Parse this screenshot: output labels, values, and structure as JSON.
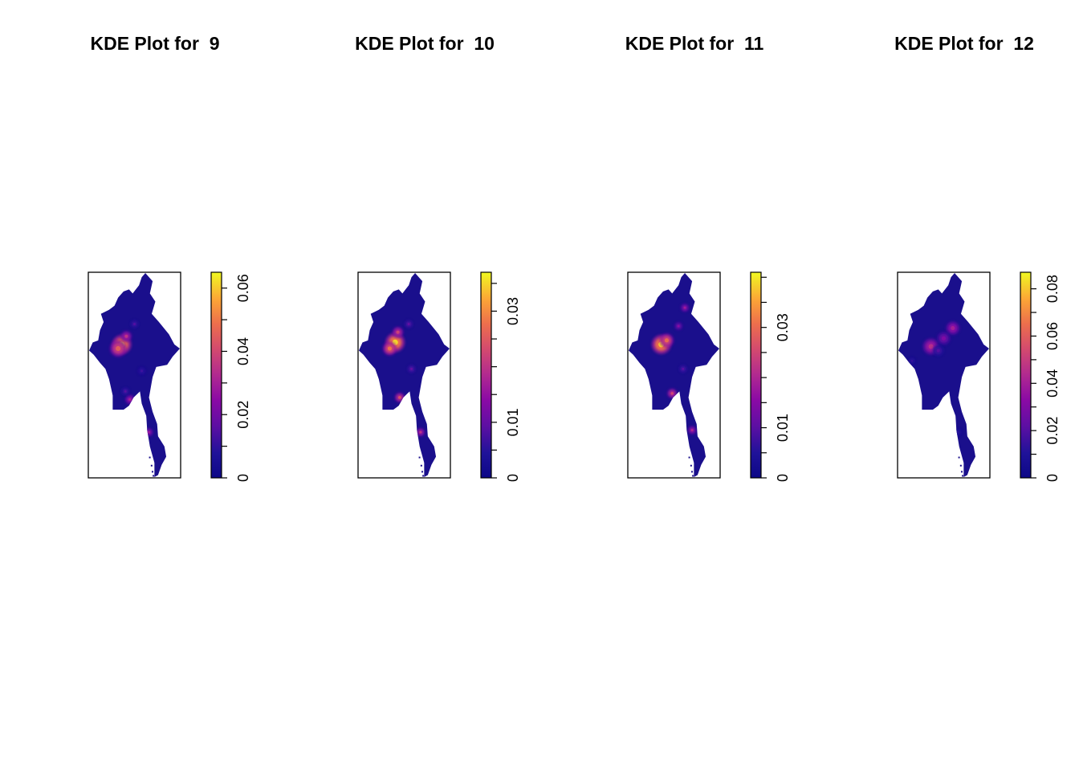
{
  "chart_data": [
    {
      "type": "heatmap",
      "title": "KDE Plot for  9",
      "xlabel": "",
      "ylabel": "",
      "colorbar": {
        "min": 0,
        "max": 0.065,
        "ticks": [
          0,
          0.01,
          0.02,
          0.03,
          0.04,
          0.05,
          0.06
        ],
        "tick_labels": [
          "0",
          "0.02",
          "0.04",
          "0.06"
        ],
        "palette": "plasma"
      },
      "hotspots": [
        {
          "x": 0.36,
          "y": 0.35,
          "value": 0.06,
          "r": 0.07
        },
        {
          "x": 0.32,
          "y": 0.37,
          "value": 0.045,
          "r": 0.06
        },
        {
          "x": 0.41,
          "y": 0.31,
          "value": 0.035,
          "r": 0.04
        },
        {
          "x": 0.45,
          "y": 0.62,
          "value": 0.03,
          "r": 0.035
        },
        {
          "x": 0.66,
          "y": 0.78,
          "value": 0.028,
          "r": 0.03
        },
        {
          "x": 0.5,
          "y": 0.25,
          "value": 0.015,
          "r": 0.03
        },
        {
          "x": 0.58,
          "y": 0.48,
          "value": 0.012,
          "r": 0.03
        },
        {
          "x": 0.4,
          "y": 0.58,
          "value": 0.015,
          "r": 0.03
        }
      ]
    },
    {
      "type": "heatmap",
      "title": "KDE Plot for  10",
      "xlabel": "",
      "ylabel": "",
      "colorbar": {
        "min": 0,
        "max": 0.037,
        "ticks": [
          0,
          0.005,
          0.01,
          0.015,
          0.02,
          0.025,
          0.03,
          0.035
        ],
        "tick_labels": [
          "0",
          "0.01",
          "0.03"
        ],
        "palette": "plasma"
      },
      "hotspots": [
        {
          "x": 0.4,
          "y": 0.34,
          "value": 0.035,
          "r": 0.07
        },
        {
          "x": 0.34,
          "y": 0.37,
          "value": 0.028,
          "r": 0.05
        },
        {
          "x": 0.43,
          "y": 0.29,
          "value": 0.022,
          "r": 0.04
        },
        {
          "x": 0.45,
          "y": 0.61,
          "value": 0.024,
          "r": 0.035
        },
        {
          "x": 0.68,
          "y": 0.78,
          "value": 0.02,
          "r": 0.03
        },
        {
          "x": 0.55,
          "y": 0.25,
          "value": 0.01,
          "r": 0.03
        },
        {
          "x": 0.58,
          "y": 0.47,
          "value": 0.01,
          "r": 0.03
        }
      ]
    },
    {
      "type": "heatmap",
      "title": "KDE Plot for  11",
      "xlabel": "",
      "ylabel": "",
      "colorbar": {
        "min": 0,
        "max": 0.041,
        "ticks": [
          0,
          0.005,
          0.01,
          0.015,
          0.02,
          0.025,
          0.03,
          0.035,
          0.04
        ],
        "tick_labels": [
          "0",
          "0.01",
          "0.03"
        ],
        "palette": "plasma"
      },
      "hotspots": [
        {
          "x": 0.36,
          "y": 0.35,
          "value": 0.038,
          "r": 0.07
        },
        {
          "x": 0.42,
          "y": 0.33,
          "value": 0.03,
          "r": 0.05
        },
        {
          "x": 0.62,
          "y": 0.17,
          "value": 0.018,
          "r": 0.03
        },
        {
          "x": 0.55,
          "y": 0.26,
          "value": 0.015,
          "r": 0.03
        },
        {
          "x": 0.48,
          "y": 0.59,
          "value": 0.025,
          "r": 0.035
        },
        {
          "x": 0.7,
          "y": 0.77,
          "value": 0.02,
          "r": 0.03
        },
        {
          "x": 0.6,
          "y": 0.47,
          "value": 0.01,
          "r": 0.03
        }
      ]
    },
    {
      "type": "heatmap",
      "title": "KDE Plot for  12",
      "xlabel": "",
      "ylabel": "",
      "colorbar": {
        "min": 0,
        "max": 0.087,
        "ticks": [
          0,
          0.01,
          0.02,
          0.03,
          0.04,
          0.05,
          0.06,
          0.07,
          0.08
        ],
        "tick_labels": [
          "0",
          "0.02",
          "0.04",
          "0.06",
          "0.08"
        ],
        "palette": "plasma"
      },
      "hotspots": [
        {
          "x": 0.36,
          "y": 0.36,
          "value": 0.045,
          "r": 0.06
        },
        {
          "x": 0.6,
          "y": 0.27,
          "value": 0.04,
          "r": 0.05
        },
        {
          "x": 0.5,
          "y": 0.32,
          "value": 0.03,
          "r": 0.05
        },
        {
          "x": 0.44,
          "y": 0.38,
          "value": 0.02,
          "r": 0.04
        },
        {
          "x": 0.15,
          "y": 0.43,
          "value": 0.015,
          "r": 0.025
        },
        {
          "x": 0.66,
          "y": 0.78,
          "value": 0.012,
          "r": 0.03
        }
      ]
    }
  ]
}
